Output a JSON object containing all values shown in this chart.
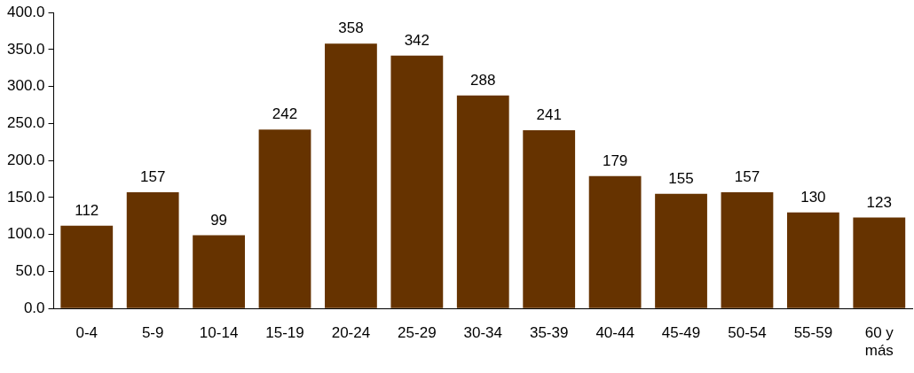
{
  "chart_data": {
    "type": "bar",
    "categories": [
      "0-4",
      "5-9",
      "10-14",
      "15-19",
      "20-24",
      "25-29",
      "30-34",
      "35-39",
      "40-44",
      "45-49",
      "50-54",
      "55-59",
      "60 y más"
    ],
    "values": [
      112,
      157,
      99,
      242,
      358,
      342,
      288,
      241,
      179,
      155,
      157,
      130,
      123
    ],
    "color": "#663300",
    "ylim": [
      0,
      400
    ],
    "yticks": [
      {
        "value": 0,
        "label": "0.0"
      },
      {
        "value": 50,
        "label": "50.0"
      },
      {
        "value": 100,
        "label": "100.0"
      },
      {
        "value": 150,
        "label": "150.0"
      },
      {
        "value": 200,
        "label": "200.0"
      },
      {
        "value": 250,
        "label": "250.0"
      },
      {
        "value": 300,
        "label": "300.0"
      },
      {
        "value": 350,
        "label": "350.0"
      },
      {
        "value": 400,
        "label": "400.0"
      }
    ],
    "grid": false,
    "legend": false,
    "data_labels": true
  }
}
